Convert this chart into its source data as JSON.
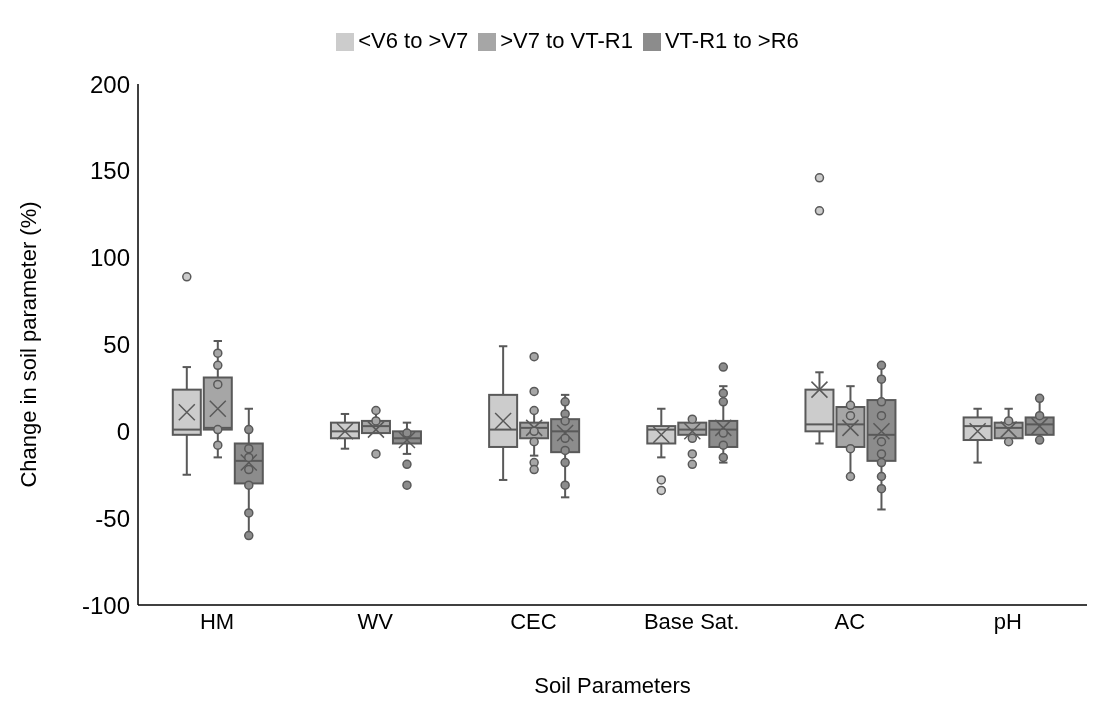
{
  "chart_data": {
    "type": "box",
    "xlabel": "Soil Parameters",
    "ylabel": "Change in soil parameter (%)",
    "categories": [
      "HM",
      "WV",
      "CEC",
      "Base Sat.",
      "AC",
      "pH"
    ],
    "ylim": [
      -100,
      200
    ],
    "yticks": [
      -100,
      -50,
      0,
      50,
      100,
      150,
      200
    ],
    "legend": "top",
    "series": [
      {
        "name": "<V6 to >V7",
        "color": "#cccccc",
        "boxes": [
          {
            "low": -25,
            "q1": -2,
            "median": 1,
            "q3": 24,
            "high": 37,
            "mean": 11,
            "outliers": [
              89
            ]
          },
          {
            "low": -10,
            "q1": -4,
            "median": 0,
            "q3": 5,
            "high": 10,
            "mean": 0
          },
          {
            "low": -28,
            "q1": -9,
            "median": 1,
            "q3": 21,
            "high": 49,
            "mean": 6
          },
          {
            "low": -15,
            "q1": -7,
            "median": 1,
            "q3": 3,
            "high": 13,
            "mean": -2,
            "outliers": [
              -28,
              -34
            ]
          },
          {
            "low": -7,
            "q1": 0,
            "median": 4,
            "q3": 24,
            "high": 34,
            "mean": 24,
            "outliers": [
              127,
              146
            ]
          },
          {
            "low": -18,
            "q1": -5,
            "median": 3,
            "q3": 8,
            "high": 13,
            "mean": 0
          }
        ]
      },
      {
        "name": ">V7 to VT-R1",
        "color": "#a6a6a6",
        "boxes": [
          {
            "low": -15,
            "q1": 1,
            "median": 2,
            "q3": 31,
            "high": 52,
            "mean": 13,
            "outliers": [
              45,
              38,
              27,
              1,
              -8
            ]
          },
          {
            "low": -1,
            "q1": -1,
            "median": 3,
            "q3": 6,
            "high": 12,
            "mean": 1,
            "outliers": [
              12,
              6,
              -13
            ]
          },
          {
            "low": -14,
            "q1": -4,
            "median": 2,
            "q3": 5,
            "high": 12,
            "mean": 2,
            "outliers": [
              43,
              23,
              12,
              0,
              -6,
              -18,
              -22
            ]
          },
          {
            "low": -4,
            "q1": -2,
            "median": 1,
            "q3": 5,
            "high": 7,
            "mean": 0,
            "outliers": [
              7,
              -4,
              -13,
              -19
            ]
          },
          {
            "low": -26,
            "q1": -9,
            "median": 4,
            "q3": 14,
            "high": 26,
            "mean": 2,
            "outliers": [
              15,
              9,
              -10,
              -26
            ]
          },
          {
            "low": -6,
            "q1": -4,
            "median": 2,
            "q3": 5,
            "high": 13,
            "mean": 1,
            "outliers": [
              6,
              -6
            ]
          }
        ]
      },
      {
        "name": "VT-R1 to >R6",
        "color": "#8c8c8c",
        "boxes": [
          {
            "low": -60,
            "q1": -30,
            "median": -17,
            "q3": -7,
            "high": 13,
            "mean": -18,
            "outliers": [
              1,
              -10,
              -15,
              -22,
              -31,
              -47,
              -60
            ]
          },
          {
            "low": -13,
            "q1": -7,
            "median": -4,
            "q3": 0,
            "high": 5,
            "mean": -5,
            "outliers": [
              -1,
              -19,
              -31
            ]
          },
          {
            "low": -38,
            "q1": -12,
            "median": 0,
            "q3": 7,
            "high": 21,
            "mean": -1,
            "outliers": [
              17,
              10,
              6,
              -4,
              -11,
              -18,
              -31
            ]
          },
          {
            "low": -18,
            "q1": -9,
            "median": 1,
            "q3": 6,
            "high": 26,
            "mean": 2,
            "outliers": [
              37,
              22,
              17,
              -1,
              -8,
              -15
            ]
          },
          {
            "low": -45,
            "q1": -17,
            "median": -2,
            "q3": 18,
            "high": 38,
            "mean": 0,
            "outliers": [
              38,
              30,
              17,
              9,
              -6,
              -13,
              -18,
              -26,
              -33
            ]
          },
          {
            "low": -5,
            "q1": -2,
            "median": 4,
            "q3": 8,
            "high": 19,
            "mean": 3,
            "outliers": [
              19,
              9,
              -5
            ]
          }
        ]
      }
    ]
  }
}
